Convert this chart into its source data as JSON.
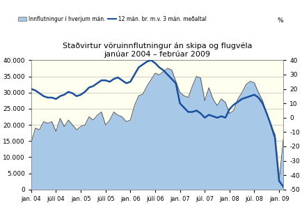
{
  "title_line1": "Staðvirtur vöruinnflutningur án skipa og flugvéla",
  "title_line2": "janúar 2004 – febrúar 2009",
  "legend_area": "Innflutningur í hverjum mán.",
  "legend_line": "12 mán. br. m.v. 3 mán. meðaltal",
  "legend_pct": "%",
  "xtick_labels": [
    "jan. 04",
    "júlí 04",
    "jan. 05",
    "júlí 05",
    "jan. 06",
    "júlí 06",
    "jan. 07",
    "júl. 07",
    "jan. 08",
    "júl. 08",
    "jan. 09"
  ],
  "yleft_min": 0,
  "yleft_max": 40000,
  "yright_min": -50,
  "yright_max": 40,
  "plot_bg_color": "#FFFFF0",
  "fig_bg_color": "#ffffff",
  "area_fill_color": "#A8C8E8",
  "area_edge_color": "#404040",
  "line_color": "#1A4FA0",
  "imports": [
    14500,
    19000,
    18500,
    21000,
    20500,
    21000,
    18000,
    22000,
    19500,
    21500,
    20000,
    18500,
    19500,
    20000,
    22500,
    21500,
    23000,
    24000,
    20000,
    21500,
    24000,
    23000,
    22500,
    21000,
    21500,
    26000,
    29000,
    29500,
    32000,
    34000,
    36000,
    35500,
    36500,
    37500,
    37000,
    33500,
    30000,
    29000,
    28500,
    32000,
    35000,
    34500,
    27500,
    31500,
    28000,
    26000,
    28000,
    27000,
    23500,
    24500,
    28000,
    30000,
    32500,
    33500,
    33000,
    30000,
    27500,
    23500,
    20000,
    17000,
    2500,
    15500
  ],
  "pct_change": [
    20,
    19,
    17,
    15,
    14,
    14,
    13,
    15,
    16,
    18,
    17,
    15,
    16,
    18,
    21,
    22,
    24,
    26,
    26,
    25,
    27,
    28,
    26,
    24,
    25,
    30,
    35,
    37,
    39,
    40,
    38,
    35,
    33,
    30,
    27,
    24,
    10,
    7,
    4,
    4,
    5,
    3,
    0,
    2,
    1,
    0,
    1,
    0,
    6,
    9,
    11,
    13,
    14,
    15,
    16,
    14,
    10,
    3,
    -5,
    -14,
    -44,
    -48
  ]
}
